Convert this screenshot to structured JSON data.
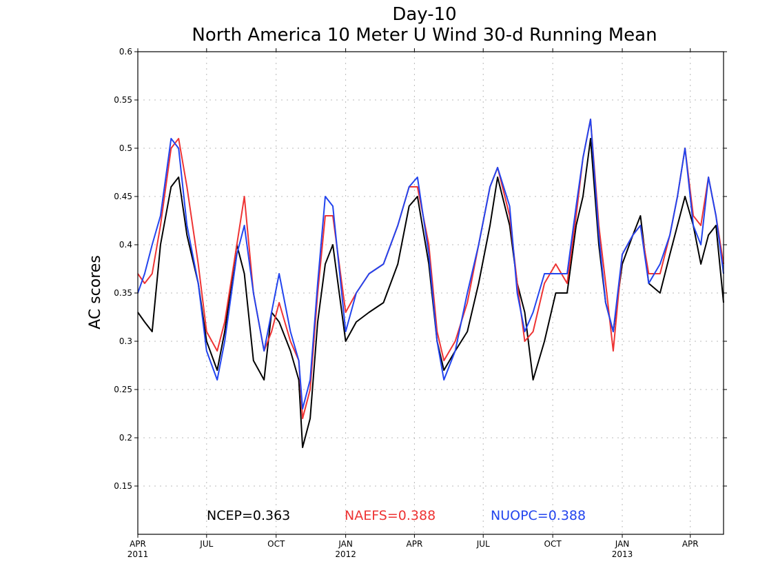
{
  "chart_data": {
    "type": "line",
    "title": "Day-10",
    "subtitle": "North America 10 Meter U Wind 30-d Running Mean",
    "xlabel": "",
    "ylabel": "AC scores",
    "xlim": [
      "2011-04-01",
      "2013-05-15"
    ],
    "ylim": [
      0.1,
      0.6
    ],
    "yticks": [
      "0.15",
      "0.2",
      "0.25",
      "0.3",
      "0.35",
      "0.4",
      "0.45",
      "0.5",
      "0.55",
      "0.6"
    ],
    "xticks": [
      {
        "date": "2011-04-01",
        "label": "APR",
        "year": "2011"
      },
      {
        "date": "2011-07-01",
        "label": "JUL",
        "year": ""
      },
      {
        "date": "2011-10-01",
        "label": "OCT",
        "year": ""
      },
      {
        "date": "2012-01-01",
        "label": "JAN",
        "year": "2012"
      },
      {
        "date": "2012-04-01",
        "label": "APR",
        "year": ""
      },
      {
        "date": "2012-07-01",
        "label": "JUL",
        "year": ""
      },
      {
        "date": "2012-10-01",
        "label": "OCT",
        "year": ""
      },
      {
        "date": "2013-01-01",
        "label": "JAN",
        "year": "2013"
      },
      {
        "date": "2013-04-01",
        "label": "APR",
        "year": ""
      }
    ],
    "grid": true,
    "legend": "bottom",
    "series": [
      {
        "name": "NCEP",
        "color": "#000000",
        "stat": "NCEP=0.363",
        "x": [
          "2011-04-01",
          "2011-04-10",
          "2011-04-20",
          "2011-05-01",
          "2011-05-15",
          "2011-05-25",
          "2011-06-05",
          "2011-06-20",
          "2011-07-01",
          "2011-07-15",
          "2011-07-25",
          "2011-08-10",
          "2011-08-20",
          "2011-09-01",
          "2011-09-15",
          "2011-09-25",
          "2011-10-05",
          "2011-10-20",
          "2011-10-31",
          "2011-11-05",
          "2011-11-15",
          "2011-11-25",
          "2011-12-05",
          "2011-12-15",
          "2012-01-01",
          "2012-01-15",
          "2012-02-01",
          "2012-02-20",
          "2012-03-10",
          "2012-03-25",
          "2012-04-05",
          "2012-04-20",
          "2012-05-01",
          "2012-05-10",
          "2012-05-25",
          "2012-06-10",
          "2012-06-25",
          "2012-07-10",
          "2012-07-20",
          "2012-08-05",
          "2012-08-15",
          "2012-08-25",
          "2012-09-05",
          "2012-09-20",
          "2012-10-05",
          "2012-10-20",
          "2012-11-01",
          "2012-11-10",
          "2012-11-20",
          "2012-12-01",
          "2012-12-10",
          "2012-12-20",
          "2013-01-01",
          "2013-01-15",
          "2013-01-25",
          "2013-02-05",
          "2013-02-20",
          "2013-03-05",
          "2013-03-15",
          "2013-03-25",
          "2013-04-05",
          "2013-04-15",
          "2013-04-25",
          "2013-05-05",
          "2013-05-15"
        ],
        "y": [
          0.33,
          0.32,
          0.31,
          0.4,
          0.46,
          0.47,
          0.41,
          0.36,
          0.3,
          0.27,
          0.31,
          0.4,
          0.37,
          0.28,
          0.26,
          0.33,
          0.32,
          0.29,
          0.26,
          0.19,
          0.22,
          0.32,
          0.38,
          0.4,
          0.3,
          0.32,
          0.33,
          0.34,
          0.38,
          0.44,
          0.45,
          0.38,
          0.3,
          0.27,
          0.29,
          0.31,
          0.36,
          0.42,
          0.47,
          0.42,
          0.36,
          0.33,
          0.26,
          0.3,
          0.35,
          0.35,
          0.42,
          0.45,
          0.51,
          0.4,
          0.34,
          0.31,
          0.38,
          0.41,
          0.43,
          0.36,
          0.35,
          0.39,
          0.42,
          0.45,
          0.42,
          0.38,
          0.41,
          0.42,
          0.34
        ]
      },
      {
        "name": "NAEFS",
        "color": "#ee3333",
        "stat": "NAEFS=0.388",
        "x": [
          "2011-04-01",
          "2011-04-10",
          "2011-04-20",
          "2011-05-01",
          "2011-05-15",
          "2011-05-25",
          "2011-06-05",
          "2011-06-20",
          "2011-07-01",
          "2011-07-15",
          "2011-07-25",
          "2011-08-10",
          "2011-08-20",
          "2011-09-01",
          "2011-09-15",
          "2011-09-25",
          "2011-10-05",
          "2011-10-20",
          "2011-10-31",
          "2011-11-05",
          "2011-11-15",
          "2011-11-25",
          "2011-12-05",
          "2011-12-15",
          "2012-01-01",
          "2012-01-15",
          "2012-02-01",
          "2012-02-20",
          "2012-03-10",
          "2012-03-25",
          "2012-04-05",
          "2012-04-20",
          "2012-05-01",
          "2012-05-10",
          "2012-05-25",
          "2012-06-10",
          "2012-06-25",
          "2012-07-10",
          "2012-07-20",
          "2012-08-05",
          "2012-08-15",
          "2012-08-25",
          "2012-09-05",
          "2012-09-20",
          "2012-10-05",
          "2012-10-20",
          "2012-11-01",
          "2012-11-10",
          "2012-11-20",
          "2012-12-01",
          "2012-12-10",
          "2012-12-20",
          "2013-01-01",
          "2013-01-15",
          "2013-01-25",
          "2013-02-05",
          "2013-02-20",
          "2013-03-05",
          "2013-03-15",
          "2013-03-25",
          "2013-04-05",
          "2013-04-15",
          "2013-04-25",
          "2013-05-05",
          "2013-05-15"
        ],
        "y": [
          0.37,
          0.36,
          0.37,
          0.42,
          0.5,
          0.51,
          0.46,
          0.38,
          0.31,
          0.29,
          0.32,
          0.4,
          0.45,
          0.35,
          0.29,
          0.31,
          0.34,
          0.3,
          0.28,
          0.22,
          0.25,
          0.35,
          0.43,
          0.43,
          0.33,
          0.35,
          0.37,
          0.38,
          0.42,
          0.46,
          0.46,
          0.4,
          0.31,
          0.28,
          0.3,
          0.34,
          0.4,
          0.46,
          0.48,
          0.43,
          0.36,
          0.3,
          0.31,
          0.36,
          0.38,
          0.36,
          0.43,
          0.49,
          0.53,
          0.42,
          0.36,
          0.29,
          0.39,
          0.41,
          0.42,
          0.37,
          0.37,
          0.41,
          0.45,
          0.5,
          0.43,
          0.42,
          0.47,
          0.43,
          0.38
        ]
      },
      {
        "name": "NUOPC",
        "color": "#2244ee",
        "stat": "NUOPC=0.388",
        "x": [
          "2011-04-01",
          "2011-04-10",
          "2011-04-20",
          "2011-05-01",
          "2011-05-15",
          "2011-05-25",
          "2011-06-05",
          "2011-06-20",
          "2011-07-01",
          "2011-07-15",
          "2011-07-25",
          "2011-08-10",
          "2011-08-20",
          "2011-09-01",
          "2011-09-15",
          "2011-09-25",
          "2011-10-05",
          "2011-10-20",
          "2011-10-31",
          "2011-11-05",
          "2011-11-15",
          "2011-11-25",
          "2011-12-05",
          "2011-12-15",
          "2012-01-01",
          "2012-01-15",
          "2012-02-01",
          "2012-02-20",
          "2012-03-10",
          "2012-03-25",
          "2012-04-05",
          "2012-04-20",
          "2012-05-01",
          "2012-05-10",
          "2012-05-25",
          "2012-06-10",
          "2012-06-25",
          "2012-07-10",
          "2012-07-20",
          "2012-08-05",
          "2012-08-15",
          "2012-08-25",
          "2012-09-05",
          "2012-09-20",
          "2012-10-05",
          "2012-10-20",
          "2012-11-01",
          "2012-11-10",
          "2012-11-20",
          "2012-12-01",
          "2012-12-10",
          "2012-12-20",
          "2013-01-01",
          "2013-01-15",
          "2013-01-25",
          "2013-02-05",
          "2013-02-20",
          "2013-03-05",
          "2013-03-15",
          "2013-03-25",
          "2013-04-05",
          "2013-04-15",
          "2013-04-25",
          "2013-05-05",
          "2013-05-15"
        ],
        "y": [
          0.35,
          0.37,
          0.4,
          0.43,
          0.51,
          0.5,
          0.42,
          0.36,
          0.29,
          0.26,
          0.3,
          0.39,
          0.42,
          0.35,
          0.29,
          0.33,
          0.37,
          0.31,
          0.28,
          0.23,
          0.26,
          0.36,
          0.45,
          0.44,
          0.31,
          0.35,
          0.37,
          0.38,
          0.42,
          0.46,
          0.47,
          0.39,
          0.3,
          0.26,
          0.29,
          0.35,
          0.4,
          0.46,
          0.48,
          0.44,
          0.35,
          0.31,
          0.33,
          0.37,
          0.37,
          0.37,
          0.44,
          0.49,
          0.53,
          0.41,
          0.34,
          0.31,
          0.39,
          0.41,
          0.42,
          0.36,
          0.38,
          0.41,
          0.45,
          0.5,
          0.42,
          0.4,
          0.47,
          0.43,
          0.37
        ]
      }
    ]
  }
}
